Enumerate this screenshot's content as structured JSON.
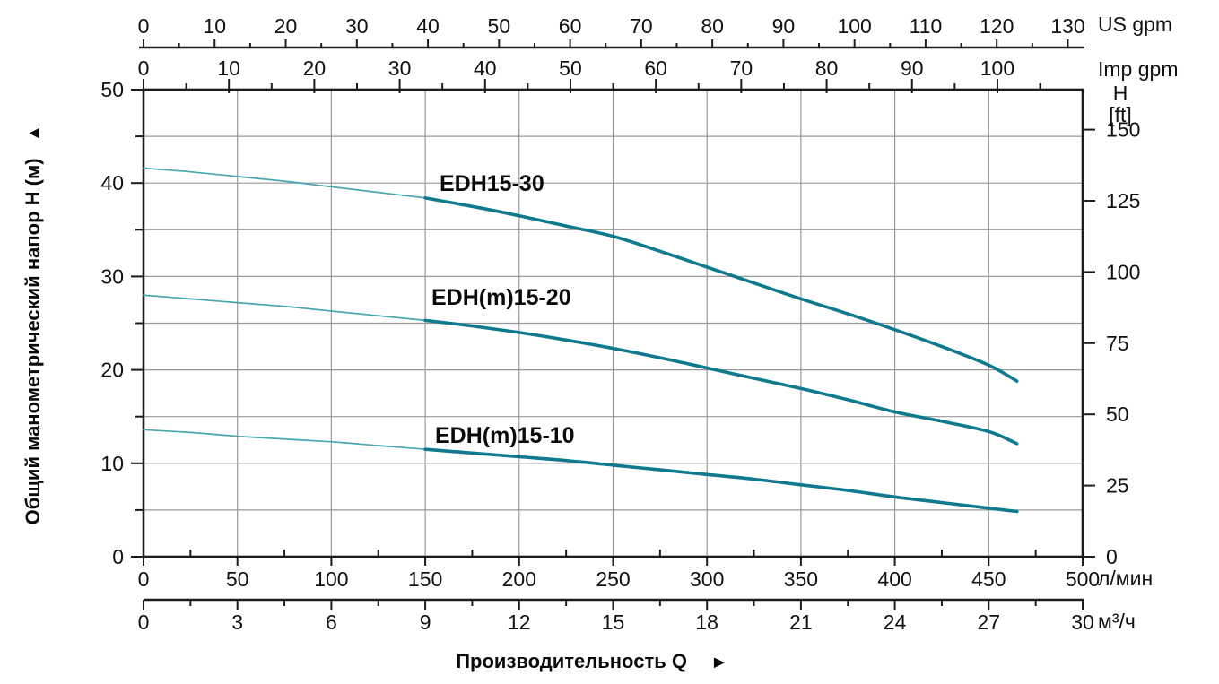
{
  "units": {
    "us_gpm": "US gpm",
    "imp_gpm": "Imp gpm",
    "head_ft_line1": "H",
    "head_ft_line2": "[ft]",
    "flow_lmin": "л/мин",
    "flow_m3h": "м³/ч"
  },
  "axis_titles": {
    "y_left": "Общий манометрический напор H (м)",
    "y_left_arrow": "▲",
    "x_bottom": "Производительность Q",
    "x_bottom_arrow": "►"
  },
  "chart_data": {
    "type": "line",
    "x_axes": {
      "flow_lmin": {
        "unit": "л/мин",
        "min": 0,
        "max": 500,
        "major_ticks": [
          0,
          50,
          100,
          150,
          200,
          250,
          300,
          350,
          400,
          450,
          500
        ],
        "minor_step": 25
      },
      "flow_m3h": {
        "unit": "м³/ч",
        "min": 0,
        "max": 30,
        "major_ticks": [
          0,
          3,
          6,
          9,
          12,
          15,
          18,
          21,
          24,
          27,
          30
        ],
        "minor_step": 1.5
      },
      "us_gpm": {
        "unit": "US gpm",
        "major_ticks": [
          0,
          10,
          20,
          30,
          40,
          50,
          60,
          70,
          80,
          90,
          100,
          110,
          120,
          130
        ],
        "minor_step": 5,
        "minor_max": 125,
        "lmin_per_unit": 3.785411784
      },
      "imp_gpm": {
        "unit": "Imp gpm",
        "major_ticks": [
          0,
          10,
          20,
          30,
          40,
          50,
          60,
          70,
          80,
          90,
          100
        ],
        "minor_step": 5,
        "minor_max": 105,
        "lmin_per_unit": 4.54609
      }
    },
    "y_axes": {
      "head_m": {
        "label": "Общий манометрический напор H (м)",
        "min": 0,
        "max": 50,
        "major_ticks": [
          0,
          10,
          20,
          30,
          40,
          50
        ],
        "minor_step": 5,
        "grid_step": 5
      },
      "head_ft": {
        "label": "H [ft]",
        "major_ticks": [
          0,
          25,
          50,
          75,
          100,
          125,
          150
        ],
        "m_per_unit": 0.3048
      }
    },
    "grid": {
      "vertical_every_lmin": 50,
      "horizontal_every_m": 5
    },
    "series": [
      {
        "name": "EDH15-30",
        "label": {
          "q_lmin": 157.6,
          "h_m": 41.3
        },
        "points": [
          [
            0,
            41.6
          ],
          [
            25,
            41.2
          ],
          [
            50,
            40.7
          ],
          [
            75,
            40.2
          ],
          [
            100,
            39.6
          ],
          [
            125,
            39.0
          ],
          [
            150,
            38.4
          ],
          [
            175,
            37.5
          ],
          [
            200,
            36.5
          ],
          [
            225,
            35.4
          ],
          [
            250,
            34.3
          ],
          [
            275,
            32.7
          ],
          [
            300,
            31.0
          ],
          [
            325,
            29.3
          ],
          [
            350,
            27.6
          ],
          [
            375,
            26.0
          ],
          [
            400,
            24.3
          ],
          [
            425,
            22.5
          ],
          [
            450,
            20.5
          ],
          [
            465,
            18.8
          ]
        ]
      },
      {
        "name": "EDH(m)15-20",
        "label": {
          "q_lmin": 153.3,
          "h_m": 29.1
        },
        "points": [
          [
            0,
            28.0
          ],
          [
            25,
            27.6
          ],
          [
            50,
            27.2
          ],
          [
            75,
            26.8
          ],
          [
            100,
            26.3
          ],
          [
            125,
            25.8
          ],
          [
            150,
            25.3
          ],
          [
            175,
            24.7
          ],
          [
            200,
            24.0
          ],
          [
            225,
            23.2
          ],
          [
            250,
            22.3
          ],
          [
            275,
            21.3
          ],
          [
            300,
            20.2
          ],
          [
            325,
            19.1
          ],
          [
            350,
            18.0
          ],
          [
            375,
            16.8
          ],
          [
            400,
            15.5
          ],
          [
            425,
            14.5
          ],
          [
            450,
            13.4
          ],
          [
            465,
            12.1
          ]
        ]
      },
      {
        "name": "EDH(m)15-10",
        "label": {
          "q_lmin": 155.2,
          "h_m": 14.3
        },
        "points": [
          [
            0,
            13.6
          ],
          [
            25,
            13.3
          ],
          [
            50,
            12.9
          ],
          [
            75,
            12.6
          ],
          [
            100,
            12.3
          ],
          [
            125,
            11.9
          ],
          [
            150,
            11.5
          ],
          [
            175,
            11.1
          ],
          [
            200,
            10.7
          ],
          [
            225,
            10.3
          ],
          [
            250,
            9.8
          ],
          [
            275,
            9.3
          ],
          [
            300,
            8.8
          ],
          [
            325,
            8.3
          ],
          [
            350,
            7.7
          ],
          [
            375,
            7.1
          ],
          [
            400,
            6.4
          ],
          [
            425,
            5.8
          ],
          [
            450,
            5.2
          ],
          [
            465,
            4.85
          ]
        ]
      }
    ],
    "style": {
      "curve_color": "#0f7a8e",
      "curve_color_thin": "#4aa6b2",
      "thin_until_lmin": 150,
      "grid_color": "#989898",
      "axis_color": "#1c1c1c",
      "background": "#ffffff"
    }
  }
}
